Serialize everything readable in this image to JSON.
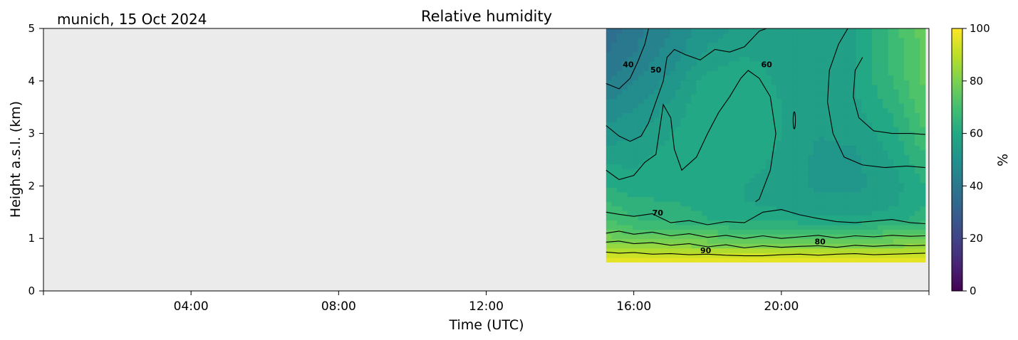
{
  "location_date": "munich, 15 Oct 2024",
  "chart_data": {
    "type": "heatmap",
    "title": "Relative humidity",
    "xlabel": "Time (UTC)",
    "ylabel": "Height a.s.l. (km)",
    "colorbar_label": "%",
    "colormap": "viridis",
    "no_data_color": "#ebebeb",
    "xlim_hours": [
      0,
      24
    ],
    "ylim_km": [
      0,
      5
    ],
    "clim": [
      0,
      100
    ],
    "x_ticks": [
      {
        "hour": 4,
        "label": "04:00"
      },
      {
        "hour": 8,
        "label": "08:00"
      },
      {
        "hour": 12,
        "label": "12:00"
      },
      {
        "hour": 16,
        "label": "16:00"
      },
      {
        "hour": 20,
        "label": "20:00"
      }
    ],
    "y_ticks": [
      {
        "value": 0,
        "label": "0"
      },
      {
        "value": 1,
        "label": "1"
      },
      {
        "value": 2,
        "label": "2"
      },
      {
        "value": 3,
        "label": "3"
      },
      {
        "value": 4,
        "label": "4"
      },
      {
        "value": 5,
        "label": "5"
      }
    ],
    "colorbar_ticks": [
      {
        "value": 0,
        "label": "0"
      },
      {
        "value": 20,
        "label": "20"
      },
      {
        "value": 40,
        "label": "40"
      },
      {
        "value": 60,
        "label": "60"
      },
      {
        "value": 80,
        "label": "80"
      },
      {
        "value": 100,
        "label": "100"
      }
    ],
    "data_window": {
      "start_hour": 15.25,
      "end_hour": 23.9,
      "min_height_km": 0.55,
      "max_height_km": 5.0
    },
    "profile_heights_km": [
      0.55,
      0.7,
      0.85,
      1.0,
      1.2,
      1.4,
      1.7,
      2.0,
      2.5,
      3.0,
      3.5,
      4.0,
      4.5,
      5.0
    ],
    "profile_hours": [
      15.25,
      16.0,
      17.0,
      18.0,
      19.0,
      20.0,
      21.0,
      22.0,
      23.0,
      23.9
    ],
    "rh_percent": [
      [
        98,
        97,
        97,
        97,
        97,
        97,
        97,
        97,
        97,
        97
      ],
      [
        93,
        91,
        91,
        91,
        91,
        91,
        91,
        91,
        91,
        92
      ],
      [
        86,
        83,
        83,
        82,
        82,
        82,
        82,
        82,
        82,
        83
      ],
      [
        80,
        77,
        77,
        76,
        75,
        75,
        75,
        75,
        76,
        78
      ],
      [
        74,
        70,
        69,
        67,
        66,
        66,
        66,
        66,
        67,
        70
      ],
      [
        70,
        66,
        64,
        62,
        60,
        59,
        58,
        58,
        60,
        64
      ],
      [
        66,
        63,
        62,
        61,
        58,
        57,
        55,
        55,
        57,
        62
      ],
      [
        62,
        60,
        60,
        61,
        58,
        56,
        53,
        53,
        56,
        62
      ],
      [
        57,
        57,
        60,
        61,
        60,
        57,
        53,
        53,
        58,
        65
      ],
      [
        52,
        53,
        58,
        62,
        61,
        58,
        54,
        55,
        60,
        70
      ],
      [
        47,
        50,
        55,
        62,
        62,
        58,
        55,
        57,
        63,
        73
      ],
      [
        42,
        46,
        51,
        60,
        61,
        57,
        56,
        58,
        66,
        75
      ],
      [
        38,
        42,
        48,
        55,
        58,
        56,
        56,
        58,
        67,
        76
      ],
      [
        35,
        40,
        46,
        52,
        55,
        55,
        55,
        57,
        68,
        76
      ]
    ],
    "contour_levels": [
      40,
      50,
      60,
      70,
      80,
      90
    ],
    "contour_labels": [
      {
        "text": "40",
        "hour": 15.85,
        "height_km": 4.3
      },
      {
        "text": "50",
        "hour": 16.6,
        "height_km": 4.2
      },
      {
        "text": "60",
        "hour": 19.6,
        "height_km": 4.3
      },
      {
        "text": "70",
        "hour": 16.65,
        "height_km": 1.48
      },
      {
        "text": "80",
        "hour": 21.05,
        "height_km": 0.93
      },
      {
        "text": "90",
        "hour": 17.95,
        "height_km": 0.76
      }
    ],
    "contour_lines": [
      {
        "level": 90,
        "points": [
          [
            15.25,
            0.74
          ],
          [
            15.6,
            0.72
          ],
          [
            16,
            0.73
          ],
          [
            16.5,
            0.7
          ],
          [
            17,
            0.71
          ],
          [
            17.5,
            0.69
          ],
          [
            18,
            0.7
          ],
          [
            18.5,
            0.68
          ],
          [
            19,
            0.67
          ],
          [
            19.5,
            0.67
          ],
          [
            20,
            0.69
          ],
          [
            20.5,
            0.7
          ],
          [
            21,
            0.68
          ],
          [
            21.5,
            0.7
          ],
          [
            22,
            0.71
          ],
          [
            22.5,
            0.69
          ],
          [
            23,
            0.7
          ],
          [
            23.5,
            0.71
          ],
          [
            23.9,
            0.72
          ]
        ]
      },
      {
        "level": 80,
        "points": [
          [
            15.25,
            0.93
          ],
          [
            15.6,
            0.95
          ],
          [
            16,
            0.9
          ],
          [
            16.5,
            0.92
          ],
          [
            17,
            0.87
          ],
          [
            17.5,
            0.9
          ],
          [
            18,
            0.84
          ],
          [
            18.5,
            0.88
          ],
          [
            19,
            0.82
          ],
          [
            19.5,
            0.86
          ],
          [
            20,
            0.83
          ],
          [
            20.5,
            0.85
          ],
          [
            21,
            0.86
          ],
          [
            21.5,
            0.83
          ],
          [
            22,
            0.87
          ],
          [
            22.5,
            0.85
          ],
          [
            23,
            0.87
          ],
          [
            23.5,
            0.86
          ],
          [
            23.9,
            0.87
          ]
        ]
      },
      {
        "level": 75,
        "points": [
          [
            15.25,
            1.1
          ],
          [
            15.6,
            1.14
          ],
          [
            16,
            1.08
          ],
          [
            16.5,
            1.12
          ],
          [
            17,
            1.05
          ],
          [
            17.5,
            1.09
          ],
          [
            18,
            1.02
          ],
          [
            18.5,
            1.06
          ],
          [
            19,
            1.0
          ],
          [
            19.5,
            1.05
          ],
          [
            20,
            1.0
          ],
          [
            20.5,
            1.03
          ],
          [
            21,
            1.06
          ],
          [
            21.5,
            1.01
          ],
          [
            22,
            1.05
          ],
          [
            22.5,
            1.03
          ],
          [
            23,
            1.06
          ],
          [
            23.5,
            1.04
          ],
          [
            23.9,
            1.05
          ]
        ]
      },
      {
        "level": 70,
        "points": [
          [
            15.25,
            1.5
          ],
          [
            15.6,
            1.46
          ],
          [
            16,
            1.42
          ],
          [
            16.5,
            1.47
          ],
          [
            17,
            1.3
          ],
          [
            17.5,
            1.34
          ],
          [
            18,
            1.26
          ],
          [
            18.5,
            1.32
          ],
          [
            19,
            1.3
          ],
          [
            19.5,
            1.5
          ],
          [
            20,
            1.55
          ],
          [
            20.5,
            1.45
          ],
          [
            21,
            1.38
          ],
          [
            21.5,
            1.32
          ],
          [
            22,
            1.3
          ],
          [
            22.5,
            1.33
          ],
          [
            23,
            1.36
          ],
          [
            23.5,
            1.3
          ],
          [
            23.9,
            1.28
          ]
        ]
      },
      {
        "level": 60,
        "points": [
          [
            15.25,
            2.3
          ],
          [
            15.6,
            2.12
          ],
          [
            16,
            2.2
          ],
          [
            16.3,
            2.45
          ],
          [
            16.6,
            2.6
          ],
          [
            16.8,
            3.55
          ],
          [
            17.0,
            3.3
          ],
          [
            17.1,
            2.7
          ],
          [
            17.3,
            2.3
          ],
          [
            17.7,
            2.55
          ],
          [
            18,
            3.0
          ],
          [
            18.3,
            3.4
          ],
          [
            18.6,
            3.7
          ],
          [
            18.9,
            4.05
          ],
          [
            19.1,
            4.2
          ],
          [
            19.4,
            4.05
          ],
          [
            19.7,
            3.7
          ],
          [
            19.85,
            3.0
          ],
          [
            19.7,
            2.3
          ],
          [
            19.4,
            1.75
          ],
          [
            19.3,
            1.7
          ]
        ]
      },
      {
        "level": 60,
        "points": [
          [
            22.2,
            4.45
          ],
          [
            22.0,
            4.2
          ],
          [
            21.95,
            3.7
          ],
          [
            22.1,
            3.3
          ],
          [
            22.5,
            3.05
          ],
          [
            23.0,
            3.0
          ],
          [
            23.5,
            3.0
          ],
          [
            23.9,
            2.98
          ]
        ]
      },
      {
        "level": 55,
        "points": [
          [
            21.8,
            5.0
          ],
          [
            21.55,
            4.7
          ],
          [
            21.3,
            4.2
          ],
          [
            21.25,
            3.6
          ],
          [
            21.4,
            3.0
          ],
          [
            21.7,
            2.55
          ],
          [
            22.2,
            2.4
          ],
          [
            22.8,
            2.35
          ],
          [
            23.4,
            2.38
          ],
          [
            23.9,
            2.35
          ]
        ]
      },
      {
        "level": 50,
        "points": [
          [
            15.25,
            3.15
          ],
          [
            15.6,
            2.95
          ],
          [
            15.9,
            2.85
          ],
          [
            16.2,
            2.95
          ],
          [
            16.4,
            3.2
          ],
          [
            16.6,
            3.6
          ],
          [
            16.8,
            4.0
          ],
          [
            16.9,
            4.45
          ],
          [
            17.1,
            4.6
          ],
          [
            17.4,
            4.5
          ],
          [
            17.8,
            4.4
          ],
          [
            18.2,
            4.6
          ],
          [
            18.6,
            4.55
          ],
          [
            19.0,
            4.65
          ],
          [
            19.4,
            4.95
          ],
          [
            19.6,
            5.0
          ]
        ]
      },
      {
        "level": 40,
        "points": [
          [
            15.25,
            3.95
          ],
          [
            15.6,
            3.85
          ],
          [
            15.9,
            4.05
          ],
          [
            16.1,
            4.35
          ],
          [
            16.3,
            4.7
          ],
          [
            16.4,
            5.0
          ]
        ]
      }
    ]
  }
}
